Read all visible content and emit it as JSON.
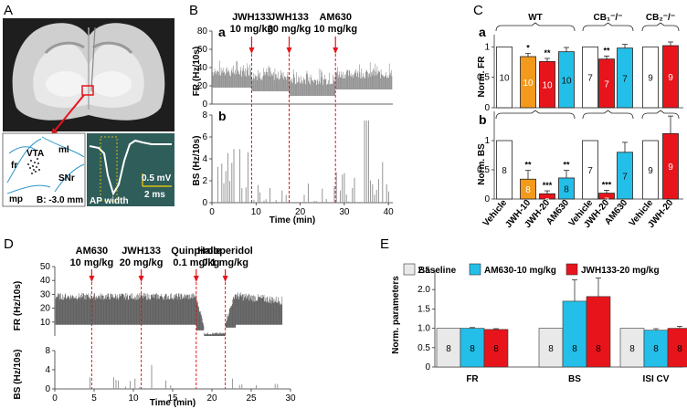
{
  "panels": {
    "A": {
      "letter": "A",
      "inset_labels": [
        "fr",
        "VTA",
        "ml",
        "SNr",
        "mp"
      ],
      "bregma": "B: -3.0 mm",
      "scale_v": "0.5 mV",
      "scale_t": "2 ms",
      "ap_label": "AP width"
    },
    "B": {
      "letter": "B",
      "sub_a": "a",
      "sub_b": "b",
      "ylabel_fr": "FR (Hz/10s)",
      "ylabel_bs": "BS (Hz/10s)",
      "xlabel": "Time (min)",
      "fr_ticks": [
        "0",
        "20",
        "40",
        "60",
        "80"
      ],
      "bs_ticks": [
        "0",
        "2",
        "4",
        "6",
        "8"
      ],
      "x_ticks": [
        "0",
        "10",
        "20",
        "30",
        "40"
      ],
      "injections": [
        {
          "drug": "JWH133",
          "dose": "10 mg/kg",
          "t": 9
        },
        {
          "drug": "JWH133",
          "dose": "20 mg/kg",
          "t": 17.5
        },
        {
          "drug": "AM630",
          "dose": "10 mg/kg",
          "t": 28
        }
      ]
    },
    "C": {
      "letter": "C",
      "sub_a": "a",
      "sub_b": "b",
      "groups": [
        "WT",
        "CB₁⁻/⁻",
        "CB₂⁻/⁻"
      ],
      "ylabel_fr": "Norm. FR",
      "ylabel_bs": "Norm. BS",
      "ticks": [
        "0",
        "0.5",
        "1"
      ],
      "xlabels": [
        "Vehicle",
        "JWH-10",
        "JWH-20",
        "AM630",
        "Vehicle",
        "JWH-20",
        "AM630",
        "Vehicle",
        "JWH-20"
      ]
    },
    "D": {
      "letter": "D",
      "ylabel_fr": "FR (Hz/10s)",
      "ylabel_bs": "BS (Hz/10s)",
      "xlabel": "Time (min)",
      "fr_ticks": [
        "10",
        "20",
        "30",
        "40",
        "50"
      ],
      "bs_ticks": [
        "0",
        "4",
        "8"
      ],
      "x_ticks": [
        "0",
        "5",
        "10",
        "15",
        "20",
        "25",
        "30"
      ],
      "injections": [
        {
          "drug": "AM630",
          "dose": "10 mg/kg",
          "t": 4.7
        },
        {
          "drug": "JWH133",
          "dose": "20 mg/kg",
          "t": 11
        },
        {
          "drug": "Quinpirole",
          "dose": "0.1 mg/kg",
          "t": 18
        },
        {
          "drug": "Haloperidol",
          "dose": "0.1 mg/kg",
          "t": 21.7
        }
      ]
    },
    "E": {
      "letter": "E",
      "ylabel": "Norm. parameters",
      "ticks": [
        "0",
        "0.5",
        "1.0",
        "1.5",
        "2.0",
        "2.5"
      ],
      "legend": [
        "Baseline",
        "AM630-10 mg/kg",
        "JWH133-20 mg/kg"
      ]
    }
  },
  "colors": {
    "orange": "#f39a1c",
    "red": "#e8141b",
    "cyan": "#23bfe8",
    "gray": "#e9e9e9"
  },
  "chart_data": [
    {
      "type": "bar",
      "title": "C a",
      "ylabel": "Norm. FR",
      "ylim": [
        0,
        1.2
      ],
      "categories": [
        "Vehicle",
        "JWH-10",
        "JWH-20",
        "AM630",
        "Vehicle",
        "JWH-20",
        "AM630",
        "Vehicle",
        "JWH-20"
      ],
      "values": [
        1.0,
        0.84,
        0.76,
        0.92,
        1.0,
        0.8,
        0.98,
        1.0,
        1.02
      ],
      "errors": [
        0,
        0.05,
        0.05,
        0.07,
        0,
        0.05,
        0.06,
        0,
        0.06
      ],
      "n": [
        "10",
        "10",
        "10",
        "10",
        "7",
        "7",
        "7",
        "9",
        "9"
      ],
      "sig": [
        "",
        "*",
        "**",
        "",
        "",
        "**",
        "",
        "",
        ""
      ],
      "colors": [
        "white",
        "orange",
        "red",
        "cyan",
        "white",
        "red",
        "cyan",
        "white",
        "red"
      ]
    },
    {
      "type": "bar",
      "title": "C b",
      "ylabel": "Norm. BS",
      "ylim": [
        0,
        1.5
      ],
      "categories": [
        "Vehicle",
        "JWH-10",
        "JWH-20",
        "AM630",
        "Vehicle",
        "JWH-20",
        "AM630",
        "Vehicle",
        "JWH-20"
      ],
      "values": [
        1.0,
        0.34,
        0.09,
        0.36,
        1.0,
        0.1,
        0.8,
        1.0,
        1.12
      ],
      "errors": [
        0,
        0.15,
        0.05,
        0.13,
        0,
        0.05,
        0.17,
        0,
        0.3
      ],
      "n": [
        "8",
        "8",
        "8",
        "8",
        "7",
        "7",
        "7",
        "9",
        "9"
      ],
      "sig": [
        "",
        "**",
        "***",
        "**",
        "",
        "***",
        "",
        "",
        ""
      ],
      "colors": [
        "white",
        "orange",
        "red",
        "cyan",
        "white",
        "red",
        "cyan",
        "white",
        "red"
      ]
    },
    {
      "type": "bar",
      "title": "E",
      "ylabel": "Norm. parameters",
      "ylim": [
        0,
        2.5
      ],
      "categories": [
        "FR",
        "BS",
        "ISI CV"
      ],
      "series": [
        {
          "name": "Baseline",
          "values": [
            1.0,
            1.0,
            1.0
          ],
          "errors": [
            0,
            0,
            0
          ],
          "n": [
            "8",
            "8",
            "8"
          ]
        },
        {
          "name": "AM630-10 mg/kg",
          "values": [
            1.0,
            1.7,
            0.95
          ],
          "errors": [
            0.02,
            0.55,
            0.04
          ],
          "n": [
            "8",
            "8",
            "8"
          ]
        },
        {
          "name": "JWH133-20 mg/kg",
          "values": [
            0.97,
            1.82,
            1.0
          ],
          "errors": [
            0.02,
            0.48,
            0.05
          ],
          "n": [
            "8",
            "8",
            "8"
          ]
        }
      ]
    }
  ]
}
